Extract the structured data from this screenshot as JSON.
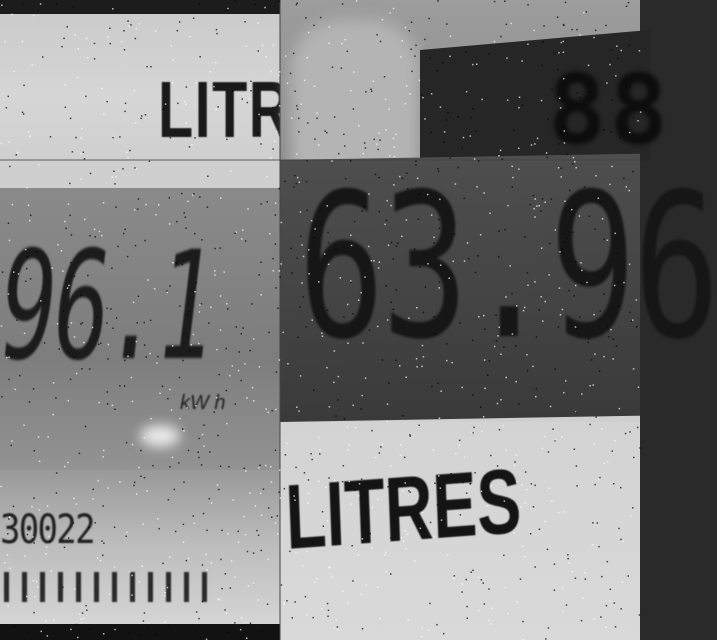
{
  "collage": {
    "top_left": {
      "text": "LITR"
    },
    "top_right": {
      "digits": "88"
    },
    "bottom_left": {
      "reading": "96.1",
      "unit": "kW h",
      "serial": "30022"
    },
    "bottom_right": {
      "reading": "63.96",
      "label": "LITRES"
    }
  }
}
